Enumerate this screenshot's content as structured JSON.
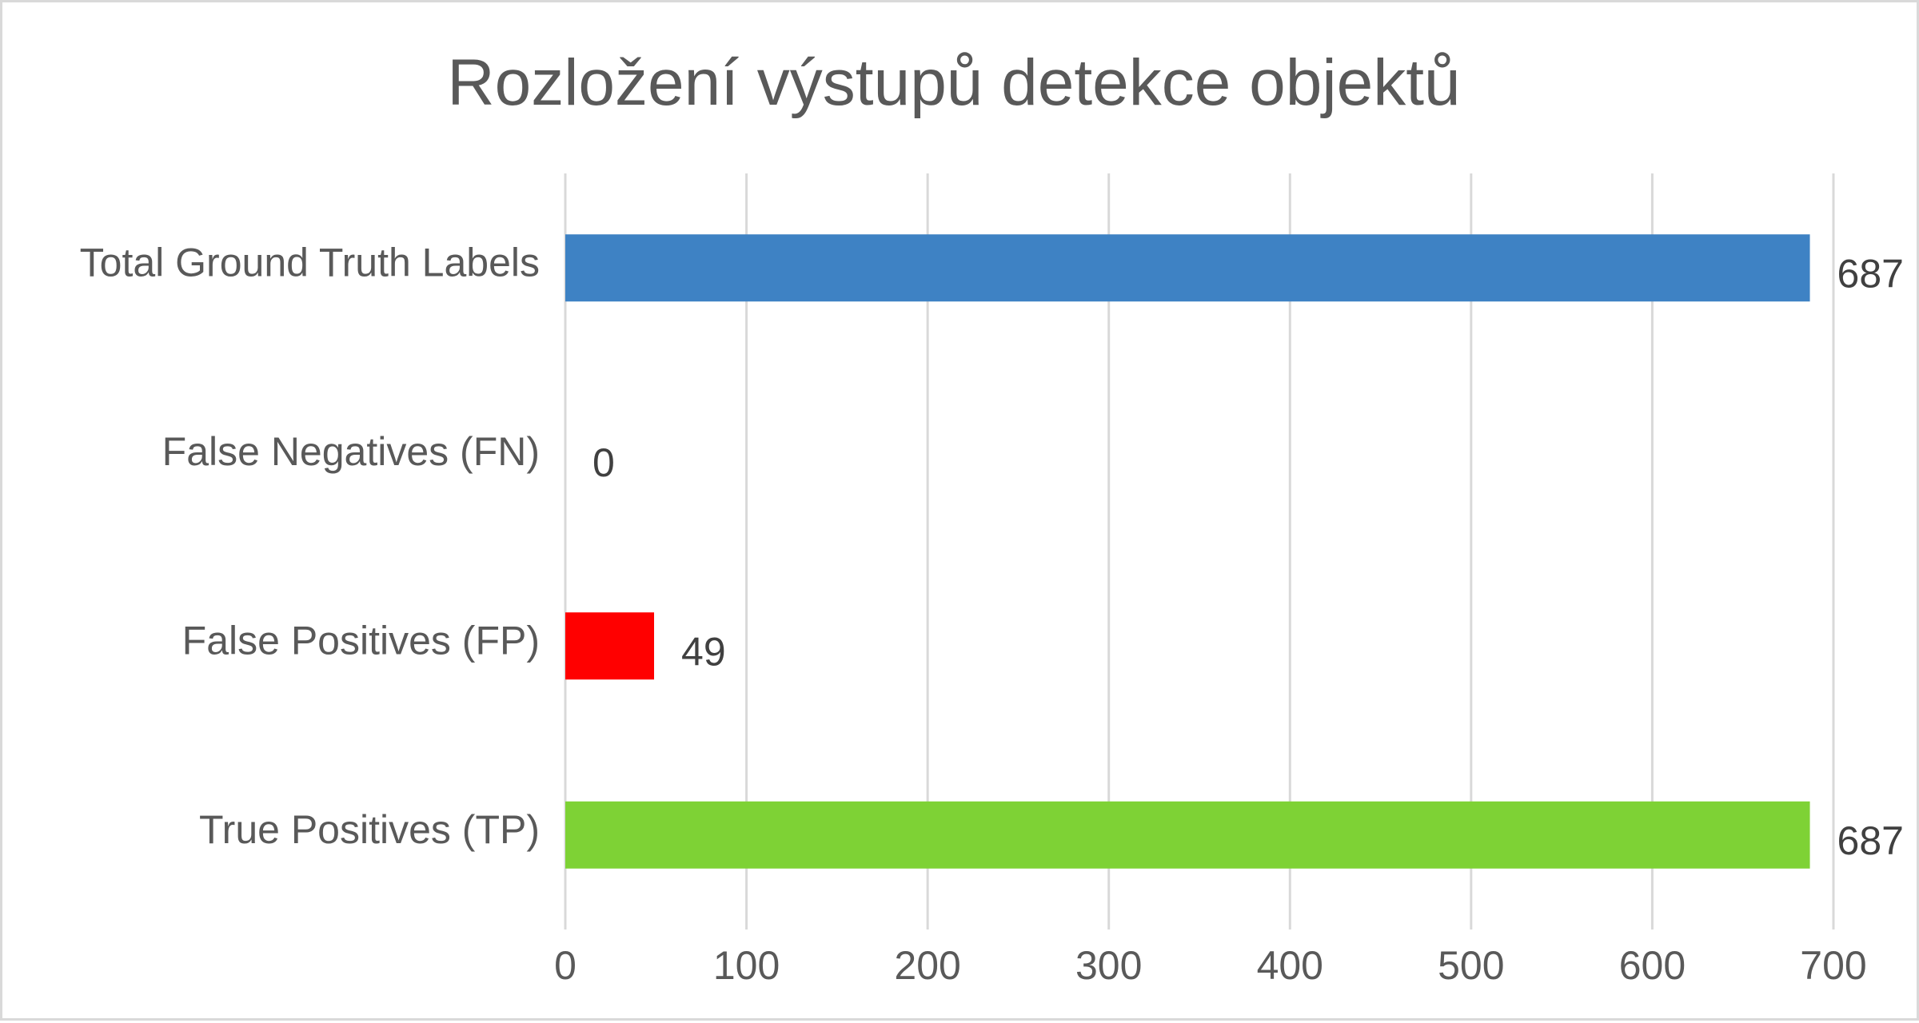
{
  "chart_data": {
    "type": "bar",
    "orientation": "horizontal",
    "title": "Rozložení výstupů detekce objektů",
    "categories": [
      "Total Ground Truth Labels",
      "False Negatives (FN)",
      "False Positives (FP)",
      "True Positives (TP)"
    ],
    "values": [
      687,
      0,
      49,
      687
    ],
    "data_labels": [
      "687",
      "0",
      "49",
      "687"
    ],
    "bar_colors": [
      "#3e82c4",
      "#3e82c4",
      "#ff0000",
      "#7ed235"
    ],
    "xlim": [
      0,
      700
    ],
    "x_ticks": [
      0,
      100,
      200,
      300,
      400,
      500,
      600,
      700
    ],
    "x_tick_labels": [
      "0",
      "100",
      "200",
      "300",
      "400",
      "500",
      "600",
      "700"
    ],
    "grid": true,
    "legend": "none"
  }
}
